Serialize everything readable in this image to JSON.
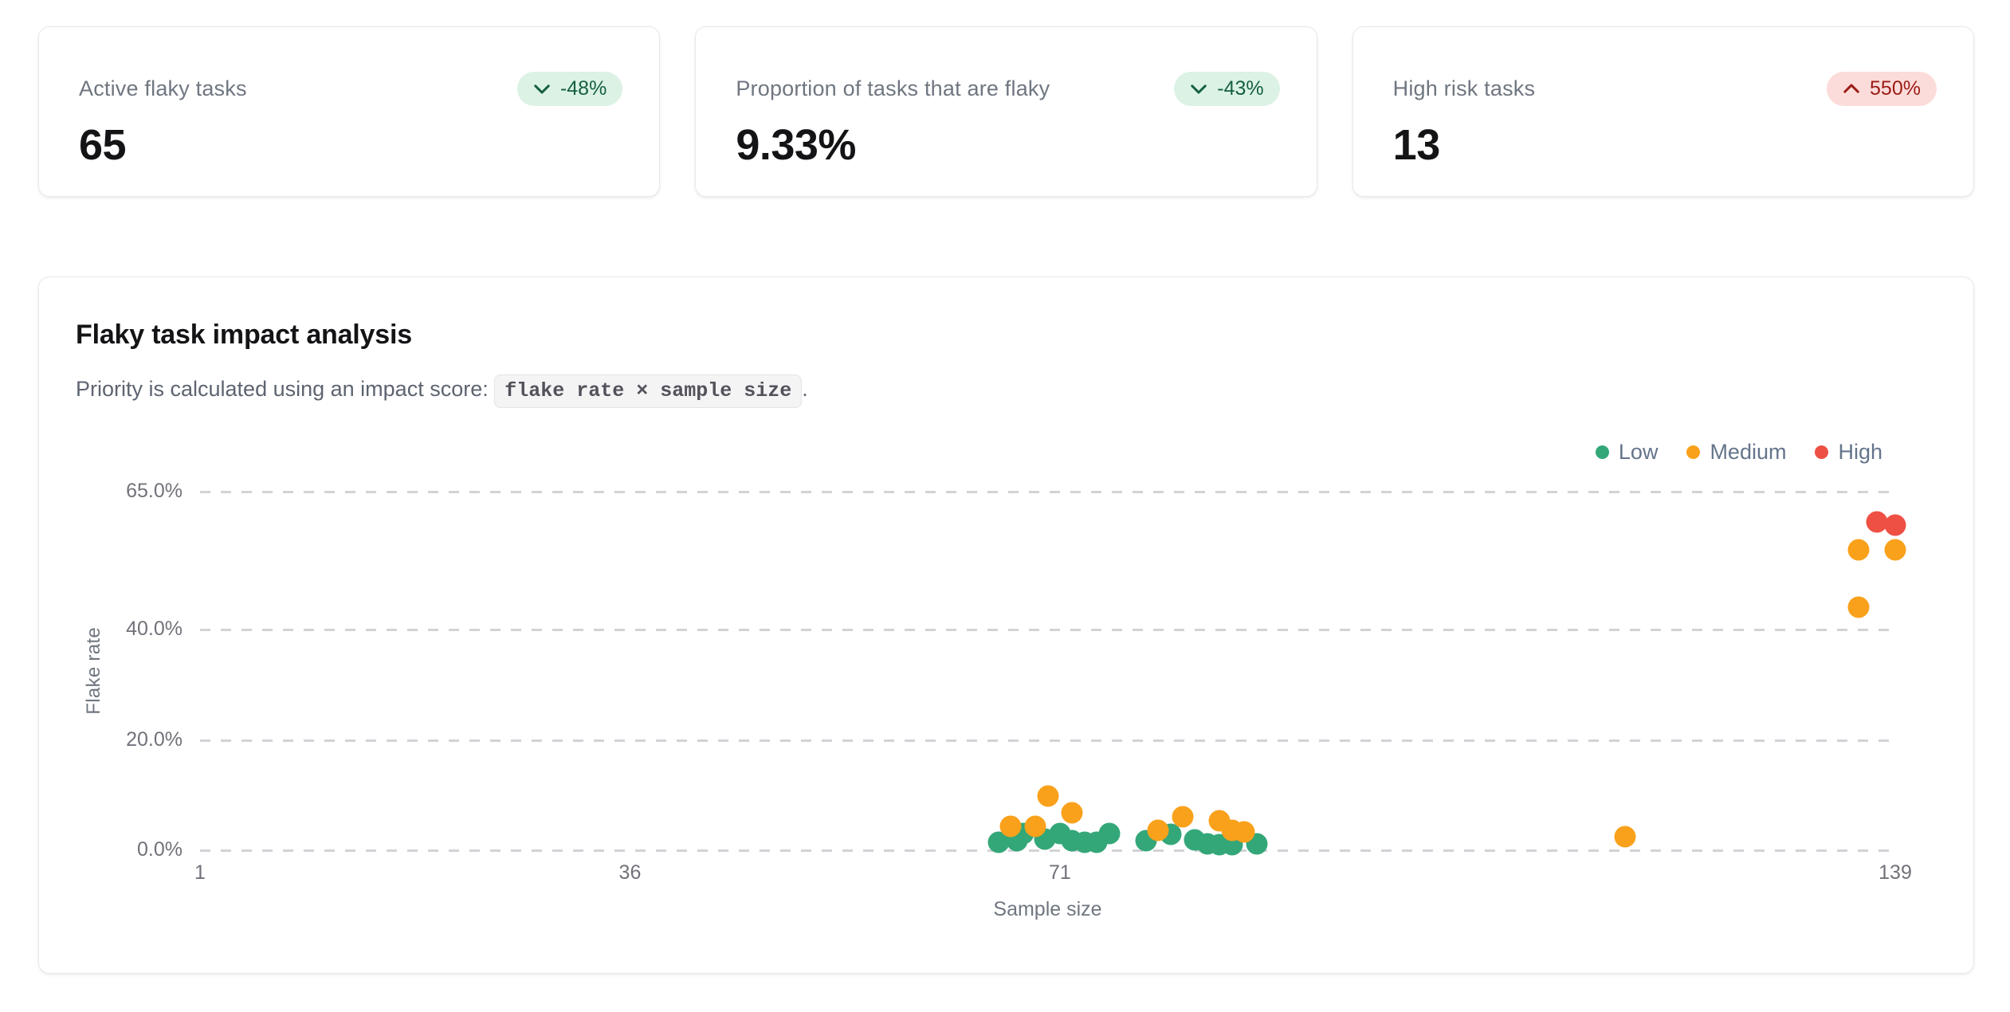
{
  "stat_cards": [
    {
      "label": "Active flaky tasks",
      "value": "65",
      "delta": "-48%",
      "direction": "down",
      "sentiment": "positive"
    },
    {
      "label": "Proportion of tasks that are flaky",
      "value": "9.33%",
      "delta": "-43%",
      "direction": "down",
      "sentiment": "positive"
    },
    {
      "label": "High risk tasks",
      "value": "13",
      "delta": "550%",
      "direction": "up",
      "sentiment": "negative"
    }
  ],
  "chart_card": {
    "title": "Flaky task impact analysis",
    "subtitle_prefix": "Priority is calculated using an impact score: ",
    "subtitle_code": "flake rate × sample size",
    "subtitle_suffix": "."
  },
  "colors": {
    "low": "#34a778",
    "medium": "#f9a11b",
    "high": "#ef5044",
    "positive_badge_bg": "#dcf2e5",
    "positive_badge_text": "#15603e",
    "negative_badge_bg": "#fcdcda",
    "negative_badge_text": "#9b1c15",
    "gridline": "#d2d2d7"
  },
  "chart_data": {
    "type": "scatter",
    "title": "Flaky task impact analysis",
    "xlabel": "Sample size",
    "ylabel": "Flake rate",
    "xlim": [
      1,
      139
    ],
    "ylim": [
      0,
      65
    ],
    "x_ticks": [
      1,
      36,
      71,
      139
    ],
    "y_ticks": [
      "0.0%",
      "20.0%",
      "40.0%",
      "65.0%"
    ],
    "y_tick_values": [
      0,
      20,
      40,
      65
    ],
    "grid": "horizontal-dashed",
    "legend_position": "top-right",
    "series": [
      {
        "name": "Low",
        "color": "#34a778",
        "points": [
          [
            66,
            1.5
          ],
          [
            67.5,
            1.8
          ],
          [
            68,
            3.0
          ],
          [
            69.8,
            2.0
          ],
          [
            71,
            3.0
          ],
          [
            72,
            1.8
          ],
          [
            73,
            1.5
          ],
          [
            74,
            1.5
          ],
          [
            75,
            3.0
          ],
          [
            78,
            1.8
          ],
          [
            80,
            2.9
          ],
          [
            82,
            1.9
          ],
          [
            83,
            1.2
          ],
          [
            84,
            1.0
          ],
          [
            85,
            1.0
          ],
          [
            87,
            1.2
          ]
        ]
      },
      {
        "name": "Medium",
        "color": "#f9a11b",
        "points": [
          [
            67,
            4.3
          ],
          [
            69,
            4.3
          ],
          [
            70,
            9.8
          ],
          [
            72,
            6.8
          ],
          [
            79,
            3.6
          ],
          [
            81,
            6.1
          ],
          [
            84,
            5.3
          ],
          [
            85,
            3.6
          ],
          [
            86,
            3.3
          ],
          [
            117,
            2.5
          ],
          [
            136,
            54.5
          ],
          [
            139,
            54.5
          ],
          [
            136,
            44
          ]
        ]
      },
      {
        "name": "High",
        "color": "#ef5044",
        "points": [
          [
            137.5,
            59.5
          ],
          [
            139,
            59
          ]
        ]
      }
    ]
  }
}
